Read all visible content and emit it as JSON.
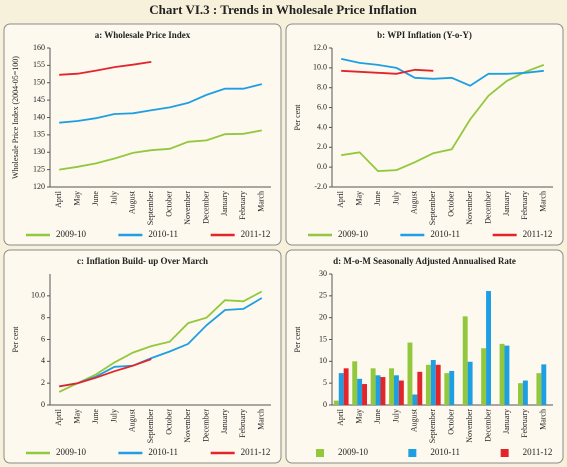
{
  "title": "Chart VI.3 : Trends in Wholesale Price Inflation",
  "chart_data": [
    {
      "type": "line",
      "title": "a: Wholesale Price Index",
      "ylabel": "Wholesale Price Index (2004-05=100)",
      "categories": [
        "April",
        "May",
        "June",
        "July",
        "August",
        "September",
        "October",
        "November",
        "December",
        "January",
        "February",
        "March"
      ],
      "ylim": [
        120,
        160
      ],
      "yticks": [
        120,
        125,
        130,
        135,
        140,
        145,
        150,
        155,
        160
      ],
      "series": [
        {
          "name": "2009-10",
          "color": "#92c83e",
          "values": [
            125,
            125.8,
            126.8,
            128.2,
            129.8,
            130.6,
            131,
            133,
            133.4,
            135.2,
            135.3,
            136.3
          ]
        },
        {
          "name": "2010-11",
          "color": "#1e9fe3",
          "values": [
            138.5,
            139,
            139.8,
            141,
            141.2,
            142.1,
            142.9,
            144.2,
            146.5,
            148.3,
            148.3,
            149.6
          ]
        },
        {
          "name": "2011-12",
          "color": "#e2252b",
          "values": [
            152.3,
            152.6,
            153.5,
            154.5,
            155.2,
            156,
            null,
            null,
            null,
            null,
            null,
            null
          ]
        }
      ]
    },
    {
      "type": "line",
      "title": "b: WPI Inflation (Y-o-Y)",
      "ylabel": "Per cent",
      "categories": [
        "April",
        "May",
        "June",
        "July",
        "August",
        "September",
        "October",
        "November",
        "December",
        "January",
        "February",
        "March"
      ],
      "ylim": [
        -2,
        12
      ],
      "yticks": [
        {
          "value": -2,
          "label": "-2.0"
        },
        {
          "value": 0,
          "label": "0.0"
        },
        {
          "value": 2,
          "label": "2.0"
        },
        {
          "value": 4,
          "label": "4.0"
        },
        {
          "value": 6,
          "label": "6.0"
        },
        {
          "value": 8,
          "label": "8.0"
        },
        {
          "value": 10,
          "label": "10.0"
        },
        {
          "value": 12,
          "label": "12.0"
        }
      ],
      "series": [
        {
          "name": "2009-10",
          "color": "#92c83e",
          "values": [
            1.2,
            1.5,
            -0.4,
            -0.3,
            0.5,
            1.4,
            1.8,
            4.8,
            7.2,
            8.7,
            9.6,
            10.3
          ]
        },
        {
          "name": "2010-11",
          "color": "#1e9fe3",
          "values": [
            10.9,
            10.5,
            10.3,
            10.0,
            9.0,
            8.9,
            9.0,
            8.2,
            9.4,
            9.4,
            9.5,
            9.7
          ]
        },
        {
          "name": "2011-12",
          "color": "#e2252b",
          "values": [
            9.7,
            9.6,
            9.5,
            9.4,
            9.8,
            9.7,
            null,
            null,
            null,
            null,
            null,
            null
          ]
        }
      ]
    },
    {
      "type": "line",
      "title": "c: Inflation Build- up Over March",
      "ylabel": "Per cent",
      "categories": [
        "April",
        "May",
        "June",
        "July",
        "August",
        "September",
        "October",
        "November",
        "December",
        "January",
        "February",
        "March"
      ],
      "ylim": [
        0,
        12
      ],
      "yticks": [
        0,
        2,
        4,
        6,
        8,
        {
          "value": 10,
          "label": "10.0"
        }
      ],
      "series": [
        {
          "name": "2009-10",
          "color": "#92c83e",
          "values": [
            1.2,
            2.0,
            2.8,
            3.9,
            4.8,
            5.4,
            5.8,
            7.5,
            8.0,
            9.6,
            9.5,
            10.4
          ]
        },
        {
          "name": "2010-11",
          "color": "#1e9fe3",
          "values": [
            1.7,
            2.0,
            2.6,
            3.5,
            3.6,
            4.3,
            4.9,
            5.6,
            7.3,
            8.7,
            8.8,
            9.8
          ]
        },
        {
          "name": "2011-12",
          "color": "#e2252b",
          "values": [
            1.7,
            2.0,
            2.5,
            3.1,
            3.6,
            4.2,
            null,
            null,
            null,
            null,
            null,
            null
          ]
        }
      ]
    },
    {
      "type": "bar",
      "title": "d: M-o-M Seasonally Adjusted Annualised Rate",
      "ylabel": "Per cent",
      "categories": [
        "April",
        "May",
        "June",
        "July",
        "August",
        "September",
        "October",
        "November",
        "December",
        "January",
        "February",
        "March"
      ],
      "ylim": [
        0,
        30
      ],
      "yticks": [
        0,
        5,
        10,
        15,
        20,
        25,
        30
      ],
      "series": [
        {
          "name": "2009-10",
          "color": "#92c83e",
          "values": [
            1,
            10,
            8.4,
            8.4,
            14.3,
            9.2,
            7.3,
            20.3,
            13,
            14,
            5,
            7.3
          ]
        },
        {
          "name": "2010-11",
          "color": "#1e9fe3",
          "values": [
            7.3,
            6,
            6.8,
            6.8,
            2.4,
            10.3,
            7.8,
            9.9,
            26.1,
            13.6,
            5.6,
            9.3
          ]
        },
        {
          "name": "2011-12",
          "color": "#e2252b",
          "values": [
            8.4,
            4.8,
            6.4,
            5.6,
            7.6,
            9.2,
            null,
            null,
            null,
            null,
            null,
            null
          ]
        }
      ]
    }
  ]
}
